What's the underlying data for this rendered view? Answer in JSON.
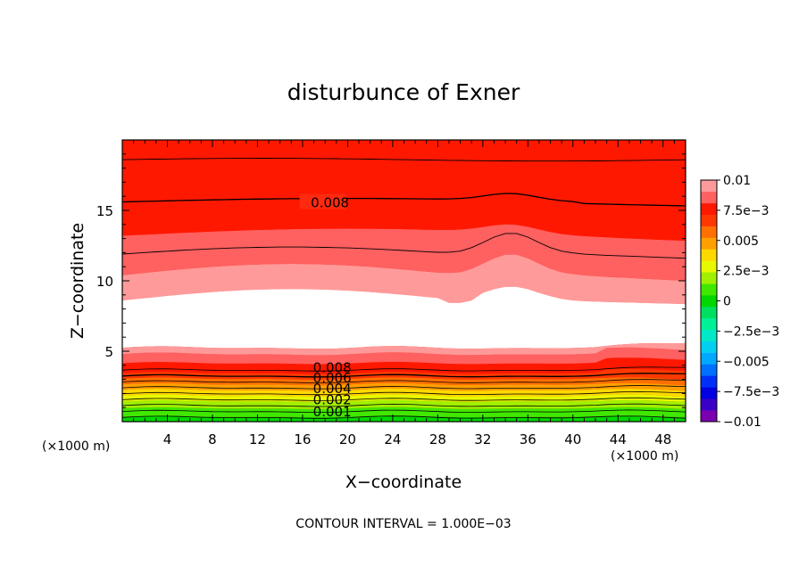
{
  "chart_data": {
    "type": "heatmap",
    "title": "disturbunce of Exner",
    "xlabel": "X−coordinate",
    "ylabel": "Z−coordinate",
    "x_unit_left": "(×1000 m)",
    "x_unit_right": "(×1000 m)",
    "xlim": [
      0,
      50
    ],
    "ylim": [
      0,
      20
    ],
    "x_ticks": [
      4,
      8,
      12,
      16,
      20,
      24,
      28,
      32,
      36,
      40,
      44,
      48
    ],
    "y_ticks": [
      5,
      10,
      15
    ],
    "contour_interval_text": "CONTOUR INTERVAL = 1.000E−03",
    "colorbar": {
      "levels": [
        -0.01,
        -0.009,
        -0.008,
        -0.007,
        -0.006,
        -0.005,
        -0.004,
        -0.003,
        -0.002,
        -0.001,
        0,
        0.001,
        0.002,
        0.003,
        0.004,
        0.005,
        0.006,
        0.007,
        0.008,
        0.009,
        0.01
      ],
      "labels": [
        {
          "value": 0.01,
          "text": "0.01"
        },
        {
          "value": 0.0075,
          "text": "7.5e−3"
        },
        {
          "value": 0.005,
          "text": "0.005"
        },
        {
          "value": 0.0025,
          "text": "2.5e−3"
        },
        {
          "value": 0,
          "text": "0"
        },
        {
          "value": -0.0025,
          "text": "−2.5e−3"
        },
        {
          "value": -0.005,
          "text": "−0.005"
        },
        {
          "value": -0.0075,
          "text": "−7.5e−3"
        },
        {
          "value": -0.01,
          "text": "−0.01"
        }
      ],
      "colors": [
        "#7a00b0",
        "#3a00c8",
        "#0000e0",
        "#0030f8",
        "#0070ff",
        "#00a8ff",
        "#00d0f0",
        "#00e8c8",
        "#00f098",
        "#00e060",
        "#00d800",
        "#40e800",
        "#a0f000",
        "#e8f800",
        "#ffd800",
        "#ffa000",
        "#ff7000",
        "#ff3800",
        "#ff1800",
        "#ff6060",
        "#ff9a9a"
      ]
    },
    "contour_labels": [
      {
        "text": "0.008",
        "x": 17.8,
        "z": 15.6
      },
      {
        "text": "0.008",
        "x": 18.0,
        "z": 3.9
      },
      {
        "text": "0.006",
        "x": 18.0,
        "z": 3.15
      },
      {
        "text": "0.004",
        "x": 18.0,
        "z": 2.4
      },
      {
        "text": "0.002",
        "x": 18.0,
        "z": 1.6
      },
      {
        "text": "0.001",
        "x": 18.0,
        "z": 0.75
      }
    ]
  }
}
